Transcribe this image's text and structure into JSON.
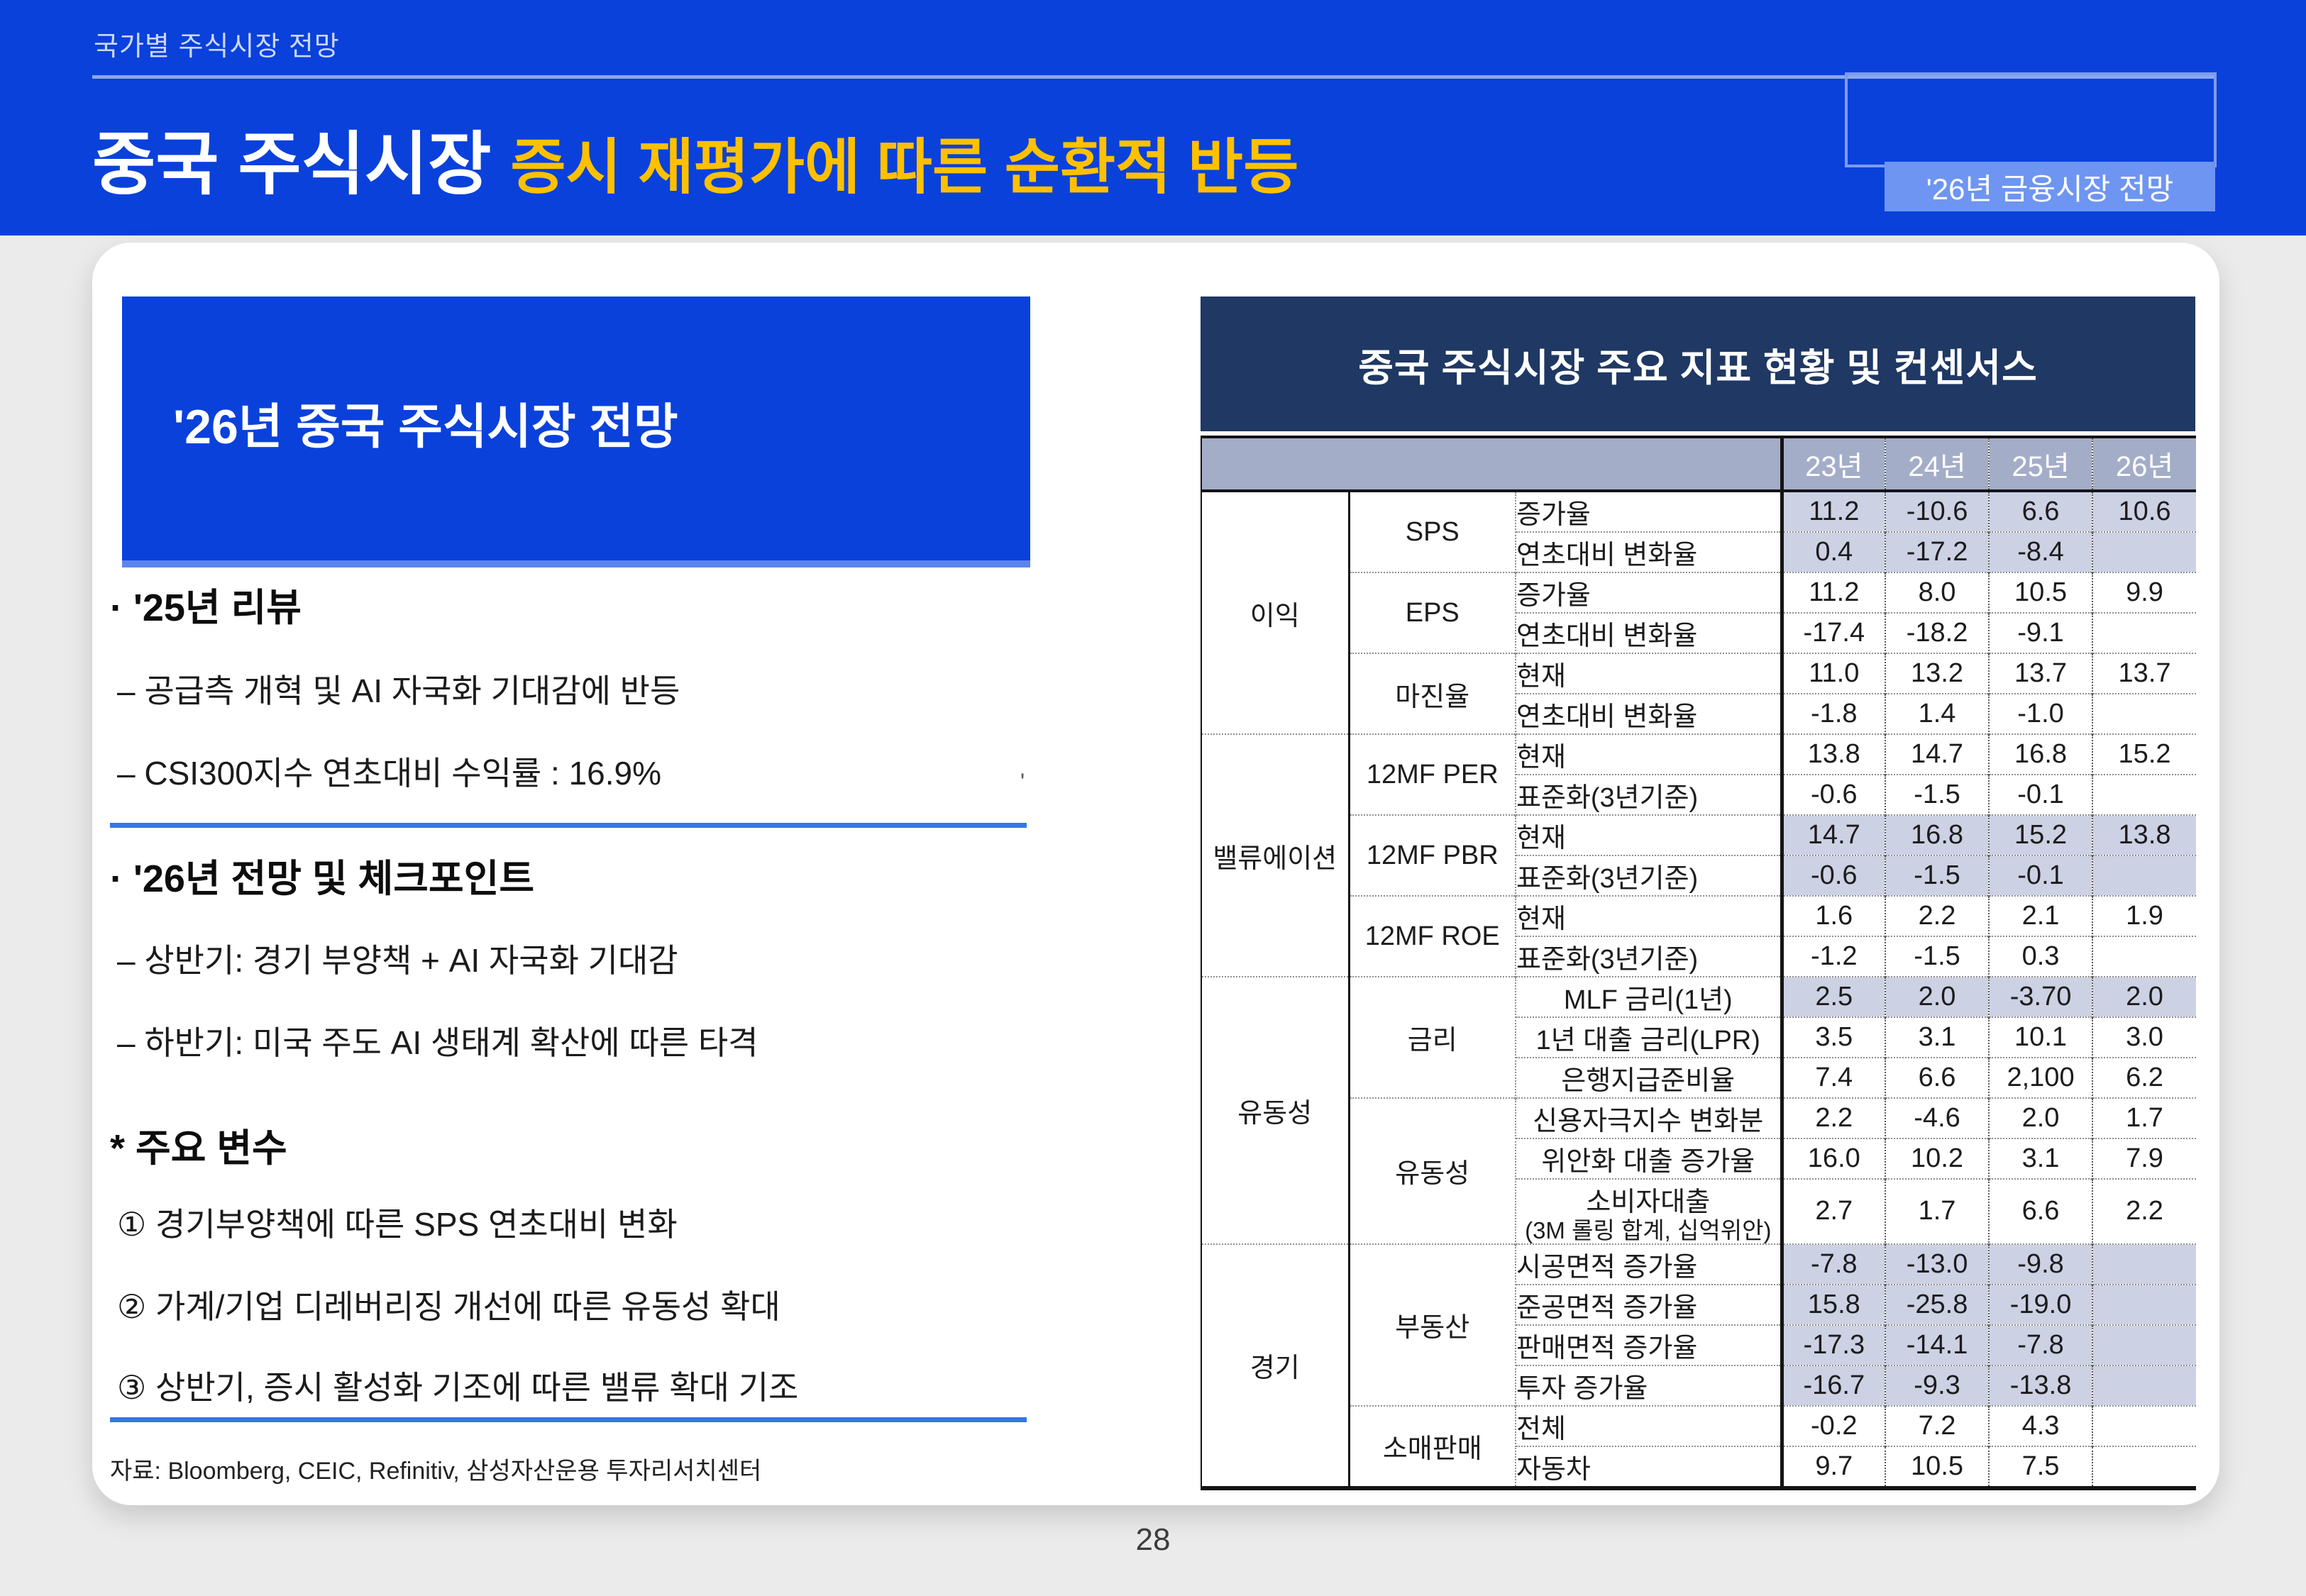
{
  "page": {
    "number": "28"
  },
  "colors": {
    "primary_blue": "#0a41db",
    "accent_yellow": "#ffc000",
    "table_title_navy": "#1f3864",
    "table_header_bg": "#a4adc8",
    "shaded_cell": "#ccd1e4",
    "badge_blue": "#6e95f2"
  },
  "header": {
    "eyebrow": "국가별 주식시장 전망",
    "title_white": "중국 주식시장 ",
    "title_yellow": "증시 재평가에 따른 순환적 반등",
    "badge": "'26년 금융시장 전망"
  },
  "left_panel": {
    "box_title": "'26년 중국 주식시장 전망",
    "stray_mark": "'",
    "sections": [
      {
        "heading": "· '25년 리뷰",
        "items": [
          "– 공급측 개혁 및 AI 자국화 기대감에 반등",
          "– CSI300지수 연초대비 수익률 : 16.9%"
        ]
      },
      {
        "heading": "· '26년 전망 및 체크포인트",
        "items": [
          "– 상반기: 경기 부양책 + AI 자국화 기대감",
          "– 하반기: 미국 주도 AI 생태계 확산에 따른 타격"
        ]
      },
      {
        "heading": "* 주요 변수",
        "items": [
          "① 경기부양책에 따른 SPS 연초대비 변화",
          "② 가계/기업 디레버리징 개선에 따른 유동성 확대",
          "③ 상반기, 증시 활성화 기조에 따른 밸류 확대 기조"
        ]
      }
    ],
    "source": "자료: Bloomberg, CEIC, Refinitiv, 삼성자산운용 투자리서치센터"
  },
  "table": {
    "title": "중국 주식시장 주요 지표 현황 및 컨센서스",
    "year_columns": [
      "23년",
      "24년",
      "25년",
      "26년"
    ],
    "rows": [
      {
        "group": "이익",
        "g_span": 6,
        "sub": "SPS",
        "s_span": 2,
        "label": "증가율",
        "align": "left",
        "shaded": true,
        "values": [
          "11.2",
          "-10.6",
          "6.6",
          "10.6"
        ]
      },
      {
        "label": "연초대비 변화율",
        "align": "left",
        "shaded": true,
        "values": [
          "0.4",
          "-17.2",
          "-8.4",
          ""
        ]
      },
      {
        "sub": "EPS",
        "s_span": 2,
        "label": "증가율",
        "align": "left",
        "values": [
          "11.2",
          "8.0",
          "10.5",
          "9.9"
        ]
      },
      {
        "label": "연초대비 변화율",
        "align": "left",
        "values": [
          "-17.4",
          "-18.2",
          "-9.1",
          ""
        ]
      },
      {
        "sub": "마진율",
        "s_span": 2,
        "label": "현재",
        "align": "left",
        "values": [
          "11.0",
          "13.2",
          "13.7",
          "13.7"
        ]
      },
      {
        "label": "연초대비 변화율",
        "align": "left",
        "values": [
          "-1.8",
          "1.4",
          "-1.0",
          ""
        ]
      },
      {
        "group": "밸류에이션",
        "g_span": 6,
        "sub": "12MF PER",
        "s_span": 2,
        "label": "현재",
        "align": "left",
        "group_top": true,
        "values": [
          "13.8",
          "14.7",
          "16.8",
          "15.2"
        ]
      },
      {
        "label": "표준화(3년기준)",
        "align": "left",
        "values": [
          "-0.6",
          "-1.5",
          "-0.1",
          ""
        ]
      },
      {
        "sub": "12MF PBR",
        "s_span": 2,
        "label": "현재",
        "align": "left",
        "shaded": true,
        "values": [
          "14.7",
          "16.8",
          "15.2",
          "13.8"
        ]
      },
      {
        "label": "표준화(3년기준)",
        "align": "left",
        "shaded": true,
        "values": [
          "-0.6",
          "-1.5",
          "-0.1",
          ""
        ]
      },
      {
        "sub": "12MF ROE",
        "s_span": 2,
        "label": "현재",
        "align": "left",
        "values": [
          "1.6",
          "2.2",
          "2.1",
          "1.9"
        ]
      },
      {
        "label": "표준화(3년기준)",
        "align": "left",
        "values": [
          "-1.2",
          "-1.5",
          "0.3",
          ""
        ]
      },
      {
        "group": "유동성",
        "g_span": 6,
        "sub": "금리",
        "s_span": 3,
        "label": "MLF 금리(1년)",
        "align": "center",
        "shaded": true,
        "group_top": true,
        "values": [
          "2.5",
          "2.0",
          "-3.70",
          "2.0"
        ]
      },
      {
        "label": "1년 대출 금리(LPR)",
        "align": "center",
        "values": [
          "3.5",
          "3.1",
          "10.1",
          "3.0"
        ]
      },
      {
        "label": "은행지급준비율",
        "align": "center",
        "values": [
          "7.4",
          "6.6",
          "2,100",
          "6.2"
        ]
      },
      {
        "sub": "유동성",
        "s_span": 3,
        "label": "신용자극지수 변화분",
        "align": "center",
        "thick_top": true,
        "values": [
          "2.2",
          "-4.6",
          "2.0",
          "1.7"
        ]
      },
      {
        "label": "위안화 대출 증가율",
        "align": "center",
        "values": [
          "16.0",
          "10.2",
          "3.1",
          "7.9"
        ]
      },
      {
        "label": "소비자대출",
        "label2": "(3M 롤링 합계, 십억위안)",
        "align": "center",
        "tall": true,
        "values": [
          "2.7",
          "1.7",
          "6.6",
          "2.2"
        ]
      },
      {
        "group": "경기",
        "g_span": 6,
        "sub": "부동산",
        "s_span": 4,
        "label": "시공면적 증가율",
        "align": "left",
        "shaded": true,
        "group_top": true,
        "values": [
          "-7.8",
          "-13.0",
          "-9.8",
          ""
        ]
      },
      {
        "label": "준공면적 증가율",
        "align": "left",
        "shaded": true,
        "values": [
          "15.8",
          "-25.8",
          "-19.0",
          ""
        ]
      },
      {
        "label": "판매면적 증가율",
        "align": "left",
        "shaded": true,
        "values": [
          "-17.3",
          "-14.1",
          "-7.8",
          ""
        ]
      },
      {
        "label": "투자 증가율",
        "align": "left",
        "shaded": true,
        "values": [
          "-16.7",
          "-9.3",
          "-13.8",
          ""
        ]
      },
      {
        "sub": "소매판매",
        "s_span": 2,
        "label": "전체",
        "align": "left",
        "values": [
          "-0.2",
          "7.2",
          "4.3",
          ""
        ]
      },
      {
        "label": "자동차",
        "align": "left",
        "values": [
          "9.7",
          "10.5",
          "7.5",
          ""
        ]
      }
    ]
  }
}
